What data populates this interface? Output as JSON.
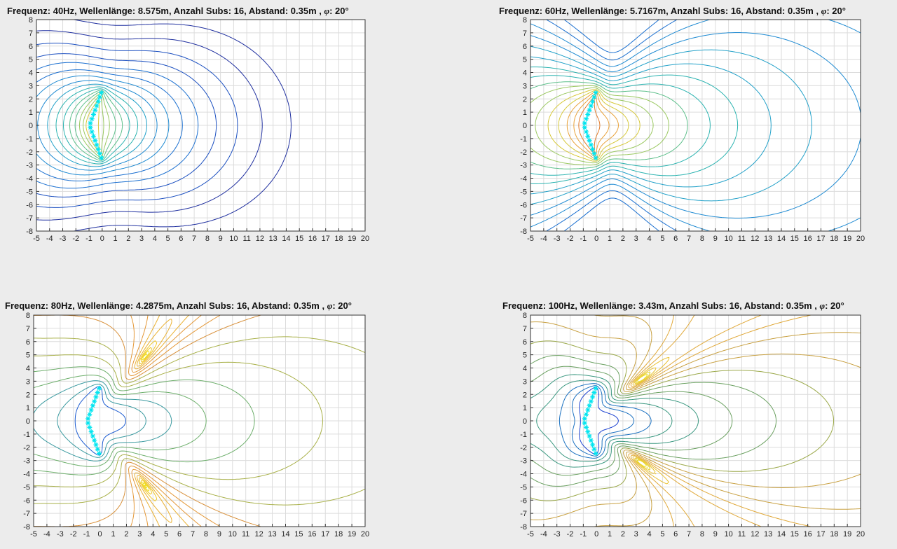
{
  "chart_data": [
    {
      "type": "contour",
      "title": "Frequenz: 40Hz,  Wellenlänge: 8.575m,  Anzahl Subs: 16,  Abstand: 0.35m ,",
      "phi_label": ": 20°",
      "xlim": [
        -5,
        20
      ],
      "ylim": [
        -8,
        8
      ],
      "xticks": [
        -5,
        -4,
        -3,
        -2,
        -1,
        0,
        1,
        2,
        3,
        4,
        5,
        6,
        7,
        8,
        9,
        10,
        11,
        12,
        13,
        14,
        15,
        16,
        17,
        18,
        19,
        20
      ],
      "yticks": [
        8,
        7,
        6,
        5,
        4,
        3,
        2,
        1,
        0,
        -1,
        -2,
        -3,
        -4,
        -5,
        -6,
        -7,
        -8
      ],
      "grid": true,
      "subwoofers": {
        "count": 16,
        "spacing": 0.35,
        "angle_deg": 20,
        "color": "#00e5f0"
      },
      "frequency_hz": 40,
      "wavelength_m": 8.575,
      "colors": [
        "#1f2f9f",
        "#1b4fc0",
        "#1a6fd0",
        "#1e8ad2",
        "#20a0c8",
        "#2bb3b0",
        "#5cbf8a",
        "#9ac860",
        "#d6c83a"
      ]
    },
    {
      "type": "contour",
      "title": "Frequenz: 60Hz,  Wellenlänge: 5.7167m,  Anzahl Subs: 16,  Abstand: 0.35m ,",
      "phi_label": ": 20°",
      "xlim": [
        -5,
        20
      ],
      "ylim": [
        -8,
        8
      ],
      "xticks": [
        -5,
        -4,
        -3,
        -2,
        -1,
        0,
        1,
        2,
        3,
        4,
        5,
        6,
        7,
        8,
        9,
        10,
        11,
        12,
        13,
        14,
        15,
        16,
        17,
        18,
        19,
        20
      ],
      "yticks": [
        8,
        7,
        6,
        5,
        4,
        3,
        2,
        1,
        0,
        -1,
        -2,
        -3,
        -4,
        -5,
        -6,
        -7,
        -8
      ],
      "grid": true,
      "subwoofers": {
        "count": 16,
        "spacing": 0.35,
        "angle_deg": 20,
        "color": "#00e5f0"
      },
      "frequency_hz": 60,
      "wavelength_m": 5.7167,
      "colors": [
        "#1a6fd0",
        "#1e8ad2",
        "#20a0c8",
        "#2bb3b0",
        "#5cbf8a",
        "#9ac860",
        "#d6c83a",
        "#e8a23a",
        "#e07a2a"
      ]
    },
    {
      "type": "contour",
      "title": "Frequenz: 80Hz,  Wellenlänge: 4.2875m,  Anzahl Subs: 16,  Abstand: 0.35m ,",
      "phi_label": ": 20°",
      "xlim": [
        -5,
        20
      ],
      "ylim": [
        -8,
        8
      ],
      "xticks": [
        -5,
        -4,
        -3,
        -2,
        -1,
        0,
        1,
        2,
        3,
        4,
        5,
        6,
        7,
        8,
        9,
        10,
        11,
        12,
        13,
        14,
        15,
        16,
        17,
        18,
        19,
        20
      ],
      "yticks": [
        8,
        7,
        6,
        5,
        4,
        3,
        2,
        1,
        0,
        -1,
        -2,
        -3,
        -4,
        -5,
        -6,
        -7,
        -8
      ],
      "grid": true,
      "subwoofers": {
        "count": 16,
        "spacing": 0.35,
        "angle_deg": 20,
        "color": "#00e5f0"
      },
      "frequency_hz": 80,
      "wavelength_m": 4.2875,
      "colors": [
        "#f0e020",
        "#f0c828",
        "#eab030",
        "#e49838",
        "#d8903a",
        "#a8b048",
        "#6cae6a",
        "#3a9aa0",
        "#1a5ad0"
      ]
    },
    {
      "type": "contour",
      "title": "Frequenz: 100Hz,  Wellenlänge: 3.43m,  Anzahl Subs: 16,  Abstand: 0.35m ,",
      "phi_label": ": 20°",
      "xlim": [
        -5,
        20
      ],
      "ylim": [
        -8,
        8
      ],
      "xticks": [
        -5,
        -4,
        -3,
        -2,
        -1,
        0,
        1,
        2,
        3,
        4,
        5,
        6,
        7,
        8,
        9,
        10,
        11,
        12,
        13,
        14,
        15,
        16,
        17,
        18,
        19,
        20
      ],
      "yticks": [
        8,
        7,
        6,
        5,
        4,
        3,
        2,
        1,
        0,
        -1,
        -2,
        -3,
        -4,
        -5,
        -6,
        -7,
        -8
      ],
      "grid": true,
      "subwoofers": {
        "count": 16,
        "spacing": 0.35,
        "angle_deg": 20,
        "color": "#00e5f0"
      },
      "frequency_hz": 100,
      "wavelength_m": 3.43,
      "colors": [
        "#eadc30",
        "#e8c030",
        "#e0a838",
        "#c8a040",
        "#9aa848",
        "#6aa060",
        "#3a9880",
        "#1a70c0",
        "#1a40d0"
      ]
    }
  ]
}
